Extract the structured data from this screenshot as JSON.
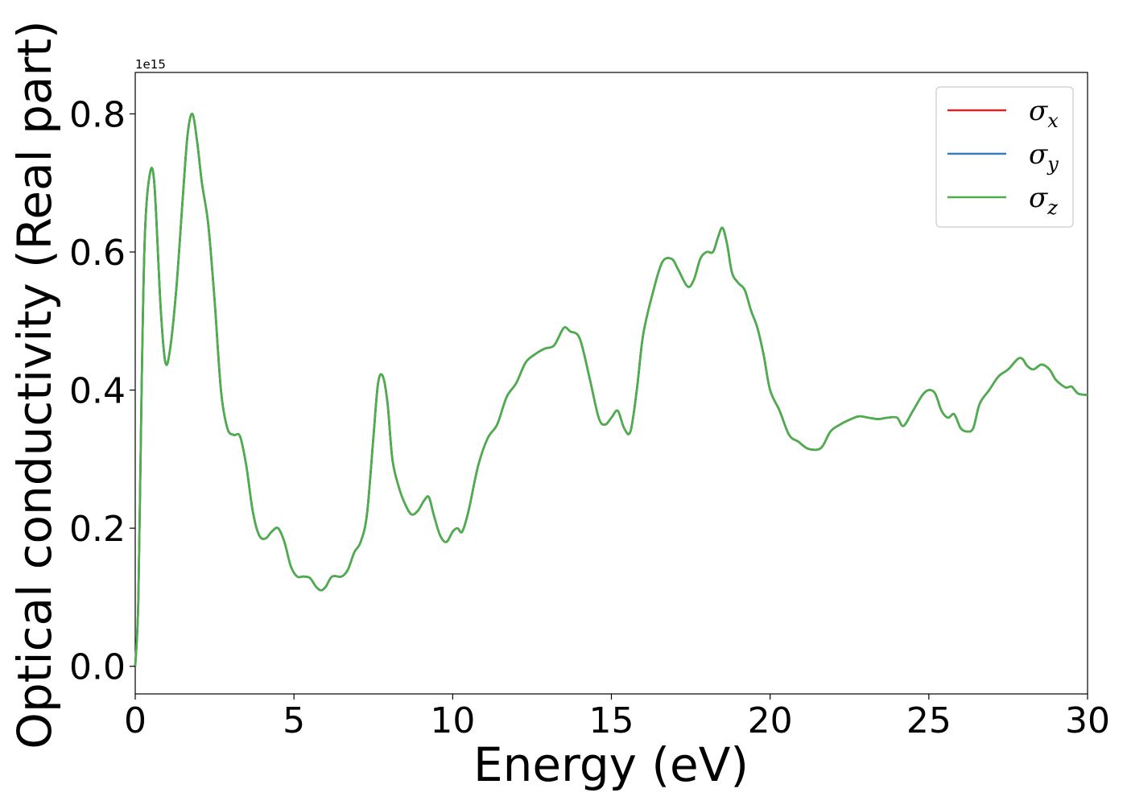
{
  "chart_data": {
    "type": "line",
    "xlabel": "Energy (eV)",
    "ylabel": "Optical conductivity (Real part)",
    "y_offset_label": "1e15",
    "y_scale": 1000000000000000.0,
    "xlim": [
      0,
      30
    ],
    "ylim": [
      -0.04,
      0.86
    ],
    "xticks": [
      0,
      5,
      10,
      15,
      20,
      25,
      30
    ],
    "xtick_labels": [
      "0",
      "5",
      "10",
      "15",
      "20",
      "25",
      "30"
    ],
    "yticks": [
      0.0,
      0.2,
      0.4,
      0.6,
      0.8
    ],
    "ytick_labels": [
      "0.0",
      "0.2",
      "0.4",
      "0.6",
      "0.8"
    ],
    "grid": false,
    "legend_position": "top-right",
    "series": [
      {
        "name": "σx",
        "symbol": "σ",
        "subscript": "x",
        "color": "#d62728"
      },
      {
        "name": "σy",
        "symbol": "σ",
        "subscript": "y",
        "color": "#3a7cb8"
      },
      {
        "name": "σz",
        "symbol": "σ",
        "subscript": "z",
        "color": "#4daf4a"
      }
    ],
    "x": [
      0,
      0.1,
      0.2,
      0.3,
      0.45,
      0.6,
      0.8,
      0.95,
      1.1,
      1.3,
      1.5,
      1.65,
      1.8,
      1.95,
      2.1,
      2.3,
      2.5,
      2.7,
      2.9,
      3.1,
      3.3,
      3.5,
      3.7,
      3.9,
      4.1,
      4.3,
      4.5,
      4.7,
      4.9,
      5.1,
      5.3,
      5.5,
      5.7,
      5.85,
      6.0,
      6.2,
      6.5,
      6.7,
      6.9,
      7.1,
      7.3,
      7.5,
      7.65,
      7.8,
      7.95,
      8.1,
      8.3,
      8.5,
      8.7,
      8.9,
      9.1,
      9.25,
      9.4,
      9.6,
      9.8,
      10.0,
      10.15,
      10.3,
      10.5,
      10.8,
      11.1,
      11.4,
      11.7,
      12.0,
      12.3,
      12.6,
      12.9,
      13.2,
      13.5,
      13.7,
      14.0,
      14.3,
      14.6,
      14.8,
      15.0,
      15.2,
      15.4,
      15.6,
      15.8,
      16.0,
      16.3,
      16.6,
      16.9,
      17.1,
      17.4,
      17.6,
      17.8,
      18.0,
      18.2,
      18.35,
      18.5,
      18.65,
      18.8,
      19.0,
      19.2,
      19.4,
      19.6,
      19.8,
      20.0,
      20.3,
      20.6,
      20.9,
      21.2,
      21.6,
      21.9,
      22.2,
      22.5,
      22.8,
      23.1,
      23.4,
      23.7,
      24.0,
      24.2,
      24.5,
      24.8,
      25.0,
      25.2,
      25.4,
      25.6,
      25.8,
      26.0,
      26.2,
      26.4,
      26.6,
      26.9,
      27.2,
      27.5,
      27.8,
      27.95,
      28.1,
      28.3,
      28.55,
      28.8,
      29.0,
      29.3,
      29.5,
      29.7,
      30.0
    ],
    "y": [
      0.0,
      0.1,
      0.4,
      0.62,
      0.71,
      0.7,
      0.52,
      0.44,
      0.46,
      0.55,
      0.68,
      0.77,
      0.8,
      0.76,
      0.7,
      0.64,
      0.53,
      0.4,
      0.345,
      0.335,
      0.333,
      0.29,
      0.225,
      0.19,
      0.185,
      0.195,
      0.2,
      0.18,
      0.145,
      0.13,
      0.13,
      0.128,
      0.115,
      0.11,
      0.115,
      0.13,
      0.13,
      0.14,
      0.165,
      0.18,
      0.22,
      0.33,
      0.41,
      0.42,
      0.38,
      0.3,
      0.26,
      0.235,
      0.22,
      0.225,
      0.24,
      0.245,
      0.22,
      0.19,
      0.18,
      0.195,
      0.2,
      0.195,
      0.225,
      0.29,
      0.33,
      0.35,
      0.39,
      0.41,
      0.44,
      0.452,
      0.46,
      0.465,
      0.49,
      0.485,
      0.475,
      0.42,
      0.36,
      0.35,
      0.36,
      0.37,
      0.345,
      0.34,
      0.4,
      0.48,
      0.54,
      0.585,
      0.59,
      0.575,
      0.55,
      0.56,
      0.59,
      0.6,
      0.6,
      0.62,
      0.635,
      0.61,
      0.57,
      0.555,
      0.545,
      0.515,
      0.49,
      0.45,
      0.4,
      0.37,
      0.335,
      0.325,
      0.315,
      0.316,
      0.34,
      0.35,
      0.357,
      0.362,
      0.36,
      0.358,
      0.36,
      0.36,
      0.348,
      0.37,
      0.393,
      0.4,
      0.395,
      0.37,
      0.36,
      0.365,
      0.345,
      0.34,
      0.345,
      0.38,
      0.4,
      0.42,
      0.43,
      0.445,
      0.445,
      0.435,
      0.43,
      0.437,
      0.43,
      0.415,
      0.404,
      0.405,
      0.395,
      0.393
    ]
  }
}
